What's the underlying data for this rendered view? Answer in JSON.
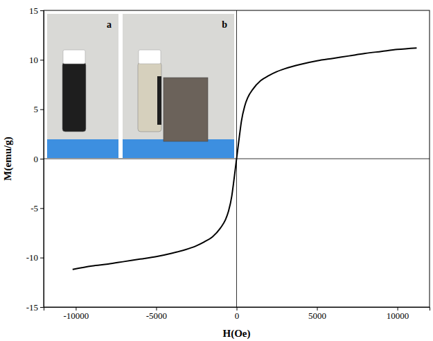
{
  "chart_data": {
    "type": "line",
    "x_label": "H(Oe)",
    "y_label": "M(emu/g)",
    "x": [
      -10200,
      -9000,
      -8000,
      -7000,
      -6000,
      -5000,
      -4000,
      -3000,
      -2500,
      -2000,
      -1500,
      -1000,
      -700,
      -500,
      -300,
      -200,
      -100,
      0,
      100,
      200,
      300,
      500,
      700,
      1000,
      1500,
      2000,
      2500,
      3000,
      4000,
      5000,
      6000,
      7000,
      8000,
      9000,
      10000,
      11200
    ],
    "values": [
      -11.2,
      -10.85,
      -10.65,
      -10.4,
      -10.15,
      -9.9,
      -9.55,
      -9.1,
      -8.8,
      -8.4,
      -7.9,
      -7.0,
      -6.2,
      -5.3,
      -3.8,
      -2.6,
      -1.3,
      0,
      1.3,
      2.6,
      3.8,
      5.3,
      6.2,
      7.0,
      7.9,
      8.4,
      8.8,
      9.1,
      9.55,
      9.9,
      10.15,
      10.4,
      10.65,
      10.85,
      11.05,
      11.2
    ],
    "color": "#000000",
    "xlim": [
      -12000,
      12000
    ],
    "xticks": [
      -10000,
      -5000,
      0,
      5000,
      10000
    ],
    "ylim": [
      -15,
      15
    ],
    "yticks": [
      -15,
      -10,
      -5,
      0,
      5,
      10,
      15
    ],
    "grid": false,
    "inset_labels": [
      "a",
      "b"
    ]
  }
}
